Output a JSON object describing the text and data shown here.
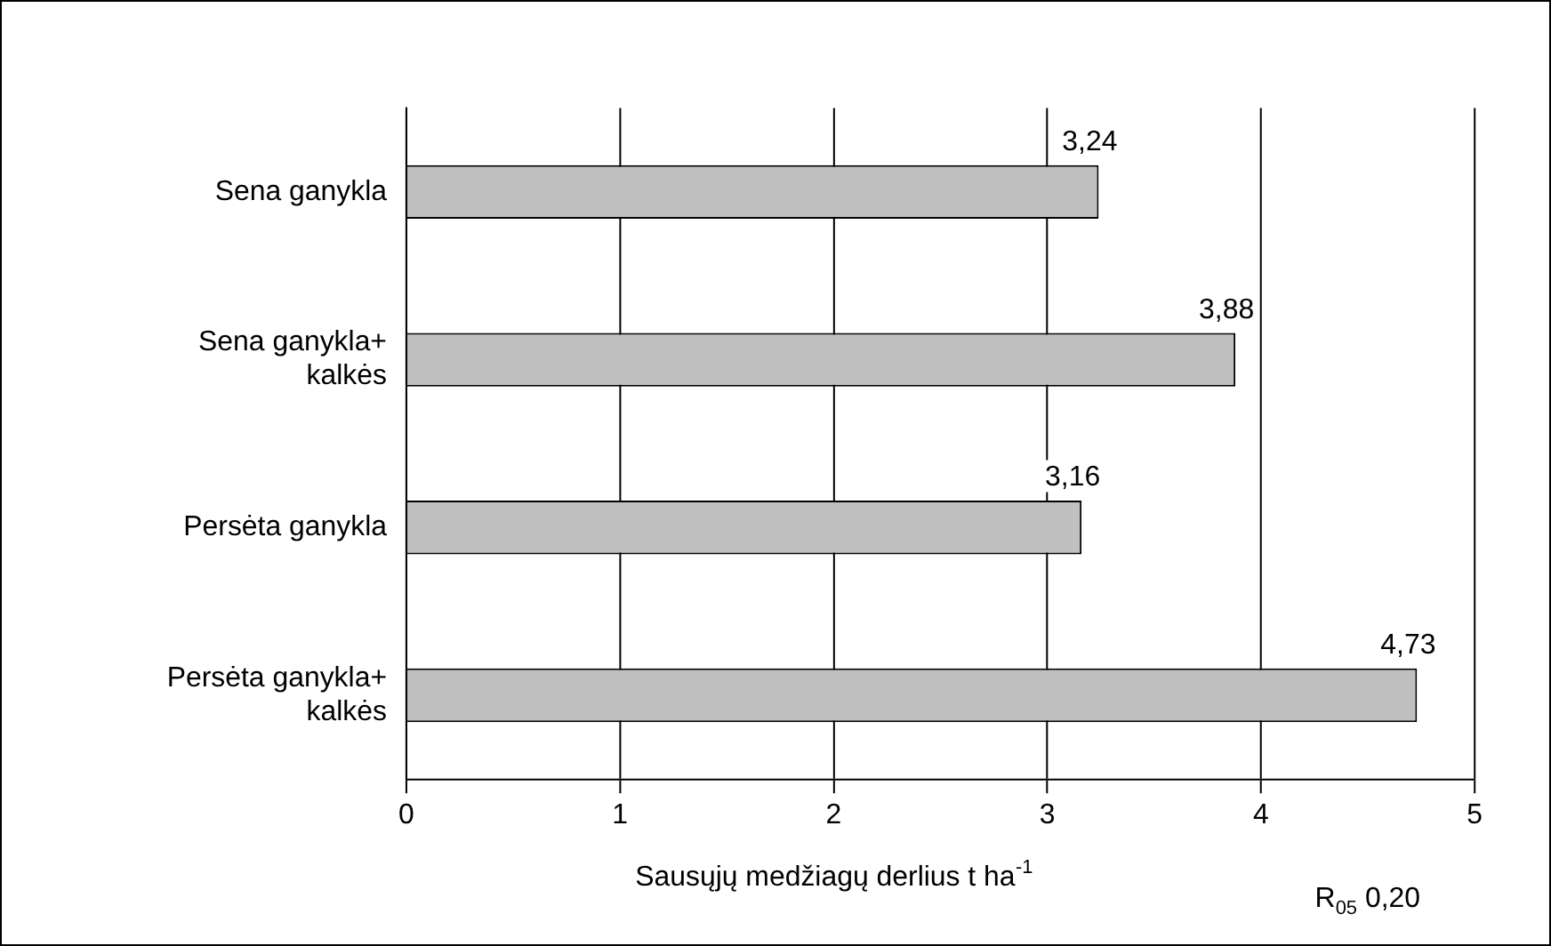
{
  "chart_data": {
    "type": "bar",
    "orientation": "horizontal",
    "xlabel": "Sausųjų medžiagų derlius t ha$^{-1}$",
    "categories": [
      "Sena ganykla",
      "Sena ganykla+ kalkės",
      "Persėta ganykla",
      "Persėta ganykla+ kalkės"
    ],
    "values": [
      3.24,
      3.88,
      3.16,
      4.73
    ],
    "value_labels": [
      "3,24",
      "3,88",
      "3,16",
      "4,73"
    ],
    "color": "#c0c0c0",
    "xlim": [
      0,
      5
    ],
    "xticks": [
      0,
      1,
      2,
      3,
      4,
      5
    ],
    "grid": "x",
    "legend": false,
    "annotations": [
      "R$_{05}$ 0,20"
    ]
  }
}
